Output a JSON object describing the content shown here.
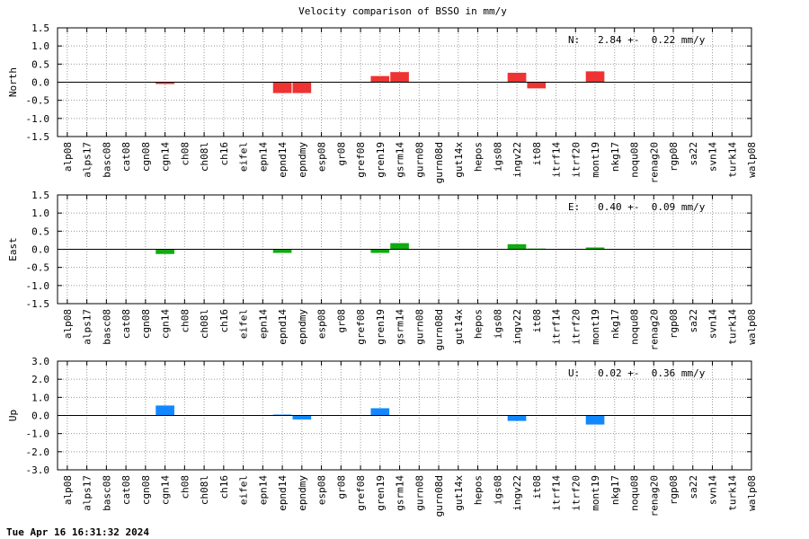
{
  "footer": {
    "timestamp": "Tue Apr 16 16:31:32 2024"
  },
  "chart_data": {
    "type": "bar",
    "title": "Velocity comparison of BSSO in mm/y",
    "categories": [
      "alp08",
      "alps17",
      "basc08",
      "cat08",
      "cgn08",
      "cgn14",
      "ch08",
      "ch08l",
      "ch16",
      "eifel",
      "epn14",
      "epnd14",
      "epndmy",
      "esp08",
      "gr08",
      "gref08",
      "gren19",
      "gsrm14",
      "gurn08",
      "gurn08d",
      "gut14x",
      "hepos",
      "igs08",
      "ingv22",
      "it08",
      "itrf14",
      "itrf20",
      "mont19",
      "nkg17",
      "noqu08",
      "renag20",
      "rgp08",
      "sa22",
      "svn14",
      "turk14",
      "walp08"
    ],
    "grid": true,
    "panels": [
      {
        "ylabel": "North",
        "ylim": [
          -1.5,
          1.5
        ],
        "yticks": [
          "1.5",
          "1.0",
          "0.5",
          "0.0",
          "-0.5",
          "-1.0",
          "-1.5"
        ],
        "color": "#ee3333",
        "annotation": "N:   2.84 +-  0.22 mm/y",
        "values": [
          0,
          0,
          0,
          0,
          0,
          -0.05,
          0,
          0,
          0,
          0,
          0,
          -0.3,
          -0.3,
          0,
          0,
          0,
          0.17,
          0.28,
          0,
          0,
          0,
          0,
          0,
          0.26,
          -0.17,
          0,
          0,
          0.3,
          0,
          0,
          0,
          0,
          0,
          0,
          0,
          0
        ]
      },
      {
        "ylabel": "East",
        "ylim": [
          -1.5,
          1.5
        ],
        "yticks": [
          "1.5",
          "1.0",
          "0.5",
          "0.0",
          "-0.5",
          "-1.0",
          "-1.5"
        ],
        "color": "#11aa11",
        "annotation": "E:   0.40 +-  0.09 mm/y",
        "values": [
          0,
          0,
          0,
          0,
          0,
          -0.13,
          0,
          0,
          0,
          0,
          0,
          -0.1,
          0,
          0,
          0,
          0,
          -0.1,
          0.17,
          0,
          0,
          0,
          0,
          0,
          0.14,
          0.02,
          0,
          0,
          0.05,
          0,
          0,
          0,
          0,
          0,
          0,
          0,
          0
        ]
      },
      {
        "ylabel": "Up",
        "ylim": [
          -3,
          3
        ],
        "yticks": [
          "3.0",
          "2.0",
          "1.0",
          "0.0",
          "-1.0",
          "-2.0",
          "-3.0"
        ],
        "color": "#1188ff",
        "annotation": "U:   0.02 +-  0.36 mm/y",
        "values": [
          0,
          0,
          0,
          0,
          0,
          0.55,
          0,
          0,
          0,
          0,
          0,
          0.05,
          -0.22,
          0,
          0,
          0,
          0.4,
          0,
          0,
          0,
          0,
          0,
          0,
          -0.3,
          0,
          0,
          0,
          -0.5,
          0,
          0,
          0,
          0,
          0,
          0,
          0,
          0
        ]
      }
    ]
  }
}
